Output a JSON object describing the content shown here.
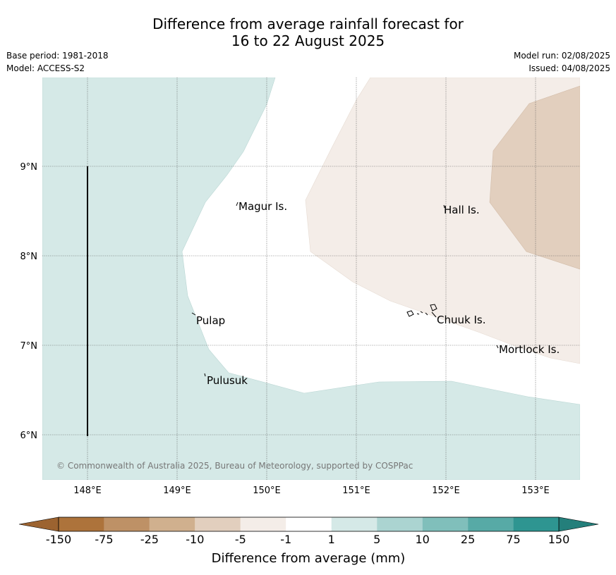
{
  "header": {
    "title_line1": "Difference from average rainfall forecast for",
    "title_line2": "16 to 22 August 2025",
    "base_period": "Base period: 1981-2018",
    "model": "Model: ACCESS-S2",
    "model_run": "Model run: 02/08/2025",
    "issued": "Issued: 04/08/2025"
  },
  "map": {
    "lon_ticks": [
      "148°E",
      "149°E",
      "150°E",
      "151°E",
      "152°E",
      "153°E"
    ],
    "lat_ticks": [
      "9°N",
      "8°N",
      "7°N",
      "6°N"
    ],
    "places": {
      "magur": "Magur Is.",
      "hall": "Hall Is.",
      "pulap": "Pulap",
      "chuuk": "Chuuk Is.",
      "mortlock": "Mortlock Is.",
      "pulusuk": "Pulusuk"
    },
    "copyright": "© Commonwealth of Australia 2025, Bureau of Meteorology, supported by COSPPac"
  },
  "colorbar": {
    "title": "Difference from average (mm)",
    "tick_labels": [
      "-150",
      "-75",
      "-25",
      "-10",
      "-5",
      "-1",
      "1",
      "5",
      "10",
      "25",
      "75",
      "150"
    ],
    "colors": [
      "#ad733b",
      "#be9166",
      "#d0b08e",
      "#e2cfbe",
      "#f4ede8",
      "#ffffff",
      "#d5e9e7",
      "#abd4d1",
      "#80bfbb",
      "#57aaa6",
      "#2e9591"
    ],
    "under_color": "#9c6330",
    "over_color": "#247f7b"
  }
}
